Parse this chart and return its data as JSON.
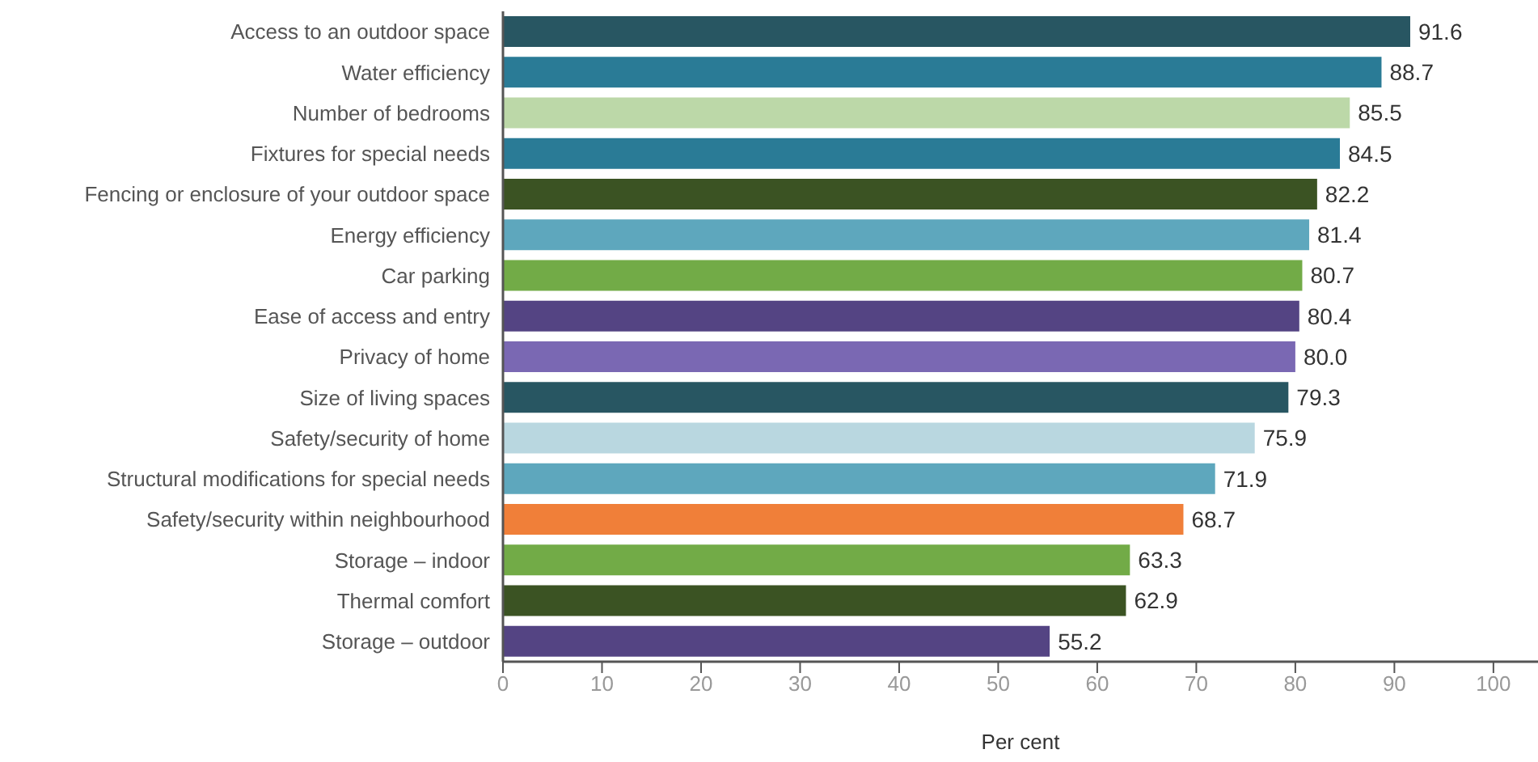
{
  "chart_data": {
    "type": "bar",
    "orientation": "horizontal",
    "categories": [
      "Access to an outdoor space",
      "Water efficiency",
      "Number of bedrooms",
      "Fixtures for special needs",
      "Fencing or enclosure of your outdoor space",
      "Energy efficiency",
      "Car parking",
      "Ease of access and entry",
      "Privacy of home",
      "Size of living spaces",
      "Safety/security of home",
      "Structural modifications for special needs",
      "Safety/security within neighbourhood",
      "Storage – indoor",
      "Thermal comfort",
      "Storage – outdoor"
    ],
    "values": [
      91.6,
      88.7,
      85.5,
      84.5,
      82.2,
      81.4,
      80.7,
      80.4,
      80.0,
      79.3,
      75.9,
      71.9,
      68.7,
      63.3,
      62.9,
      55.2
    ],
    "value_labels": [
      "91.6",
      "88.7",
      "85.5",
      "84.5",
      "82.2",
      "81.4",
      "80.7",
      "80.4",
      "80.0",
      "79.3",
      "75.9",
      "71.9",
      "68.7",
      "63.3",
      "62.9",
      "55.2"
    ],
    "colors": [
      "#285662",
      "#2a7b96",
      "#bcd8a8",
      "#2a7b96",
      "#3b5323",
      "#5ea7bd",
      "#72ab47",
      "#544483",
      "#7a68b3",
      "#285662",
      "#b9d7e0",
      "#5ea7bd",
      "#f07f39",
      "#72ab47",
      "#3b5323",
      "#544483"
    ],
    "xlim": [
      0,
      104.5
    ],
    "xticks": [
      0,
      10,
      20,
      30,
      40,
      50,
      60,
      70,
      80,
      90,
      100
    ],
    "xlabel": "Per cent"
  }
}
